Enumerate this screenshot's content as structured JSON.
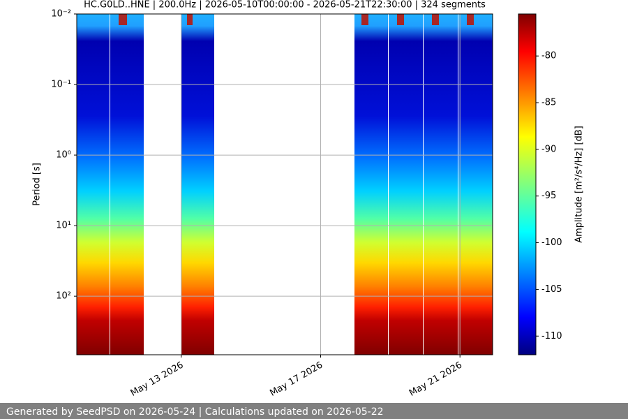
{
  "chart_data": {
    "type": "spectrogram",
    "title": "HC.G0LD..HNE | 200.0Hz | 2026-05-10T00:00:00 - 2026-05-21T22:30:00 | 324 segments",
    "y_label": "Period [s]",
    "y_log": true,
    "y_inverted": true,
    "ylim": [
      0.01,
      676
    ],
    "yticks": [
      {
        "value": 0.01,
        "label": "10⁻²"
      },
      {
        "value": 0.1,
        "label": "10⁻¹"
      },
      {
        "value": 1,
        "label": "10⁰"
      },
      {
        "value": 10,
        "label": "10¹"
      },
      {
        "value": 100,
        "label": "10²"
      }
    ],
    "xlim": [
      "2026-05-10T00:00:00Z",
      "2026-05-21T22:30:00Z"
    ],
    "xticks": [
      {
        "value": "2026-05-13T00:00:00Z",
        "label": "May 13 2026"
      },
      {
        "value": "2026-05-17T00:00:00Z",
        "label": "May 17 2026"
      },
      {
        "value": "2026-05-21T00:00:00Z",
        "label": "May 21 2026"
      }
    ],
    "grid": true,
    "colorbar": {
      "label": "Amplitude [m²/s⁴/Hz] [dB]",
      "lim": [
        -112,
        -75.5
      ],
      "ticks": [
        -80,
        -85,
        -90,
        -95,
        -100,
        -105,
        -110
      ]
    },
    "footer": "Generated by SeedPSD on 2026-05-24 | Calculations updated on 2026-05-22"
  }
}
